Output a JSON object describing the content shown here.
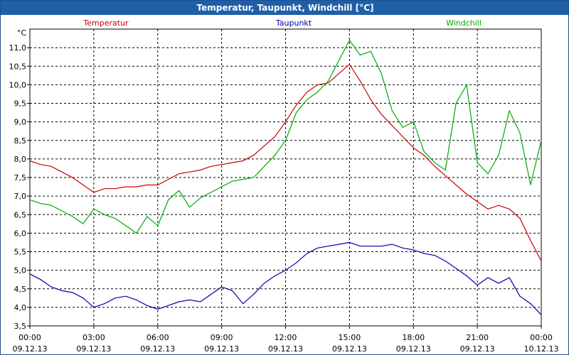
{
  "window": {
    "title": "Temperatur, Taupunkt, Windchill [°C]"
  },
  "chart_data": {
    "type": "line",
    "title": "Temperatur, Taupunkt, Windchill [°C]",
    "unit_label": "°C",
    "ylim": [
      3.5,
      11.5
    ],
    "yticks": [
      "3,5",
      "4,0",
      "4,5",
      "5,0",
      "5,5",
      "6,0",
      "6,5",
      "7,0",
      "7,5",
      "8,0",
      "8,5",
      "9,0",
      "9,5",
      "10,0",
      "10,5",
      "11,0"
    ],
    "xlim": [
      0,
      24
    ],
    "xticks": [
      {
        "time": "00:00",
        "date": "09.12.13"
      },
      {
        "time": "03:00",
        "date": "09.12.13"
      },
      {
        "time": "06:00",
        "date": "09.12.13"
      },
      {
        "time": "09:00",
        "date": "09.12.13"
      },
      {
        "time": "12:00",
        "date": "09.12.13"
      },
      {
        "time": "15:00",
        "date": "09.12.13"
      },
      {
        "time": "18:00",
        "date": "09.12.13"
      },
      {
        "time": "21:00",
        "date": "09.12.13"
      },
      {
        "time": "00:00",
        "date": "10.12.13"
      }
    ],
    "grid": true,
    "legend_position": "top",
    "series": [
      {
        "name": "Temperatur",
        "color": "#cc0000",
        "points": [
          [
            0,
            7.95
          ],
          [
            0.5,
            7.85
          ],
          [
            1,
            7.8
          ],
          [
            1.5,
            7.65
          ],
          [
            2,
            7.5
          ],
          [
            2.5,
            7.3
          ],
          [
            3,
            7.1
          ],
          [
            3.5,
            7.2
          ],
          [
            4,
            7.2
          ],
          [
            4.5,
            7.25
          ],
          [
            5,
            7.25
          ],
          [
            5.5,
            7.3
          ],
          [
            6,
            7.3
          ],
          [
            6.5,
            7.45
          ],
          [
            7,
            7.6
          ],
          [
            7.5,
            7.65
          ],
          [
            8,
            7.7
          ],
          [
            8.5,
            7.8
          ],
          [
            9,
            7.85
          ],
          [
            9.5,
            7.9
          ],
          [
            10,
            7.95
          ],
          [
            10.5,
            8.1
          ],
          [
            11,
            8.35
          ],
          [
            11.5,
            8.6
          ],
          [
            12,
            9.0
          ],
          [
            12.5,
            9.45
          ],
          [
            13,
            9.8
          ],
          [
            13.5,
            10.0
          ],
          [
            14,
            10.05
          ],
          [
            14.5,
            10.3
          ],
          [
            15,
            10.55
          ],
          [
            15.5,
            10.1
          ],
          [
            16,
            9.6
          ],
          [
            16.5,
            9.2
          ],
          [
            17,
            8.9
          ],
          [
            17.5,
            8.6
          ],
          [
            18,
            8.3
          ],
          [
            18.5,
            8.1
          ],
          [
            19,
            7.8
          ],
          [
            19.5,
            7.55
          ],
          [
            20,
            7.3
          ],
          [
            20.5,
            7.05
          ],
          [
            21,
            6.85
          ],
          [
            21.5,
            6.65
          ],
          [
            22,
            6.75
          ],
          [
            22.5,
            6.65
          ],
          [
            23,
            6.4
          ],
          [
            23.5,
            5.8
          ],
          [
            24,
            5.25
          ]
        ]
      },
      {
        "name": "Taupunkt",
        "color": "#0000aa",
        "points": [
          [
            0,
            4.9
          ],
          [
            0.5,
            4.75
          ],
          [
            1,
            4.55
          ],
          [
            1.5,
            4.45
          ],
          [
            2,
            4.4
          ],
          [
            2.5,
            4.25
          ],
          [
            3,
            4.0
          ],
          [
            3.5,
            4.1
          ],
          [
            4,
            4.25
          ],
          [
            4.5,
            4.3
          ],
          [
            5,
            4.2
          ],
          [
            5.5,
            4.05
          ],
          [
            6,
            3.95
          ],
          [
            6.5,
            4.05
          ],
          [
            7,
            4.15
          ],
          [
            7.5,
            4.2
          ],
          [
            8,
            4.15
          ],
          [
            8.5,
            4.35
          ],
          [
            9,
            4.55
          ],
          [
            9.5,
            4.45
          ],
          [
            10,
            4.1
          ],
          [
            10.5,
            4.35
          ],
          [
            11,
            4.65
          ],
          [
            11.5,
            4.85
          ],
          [
            12,
            5.0
          ],
          [
            12.5,
            5.2
          ],
          [
            13,
            5.45
          ],
          [
            13.5,
            5.6
          ],
          [
            14,
            5.65
          ],
          [
            14.5,
            5.7
          ],
          [
            15,
            5.75
          ],
          [
            15.5,
            5.65
          ],
          [
            16,
            5.65
          ],
          [
            16.5,
            5.65
          ],
          [
            17,
            5.7
          ],
          [
            17.5,
            5.6
          ],
          [
            18,
            5.55
          ],
          [
            18.5,
            5.45
          ],
          [
            19,
            5.4
          ],
          [
            19.5,
            5.25
          ],
          [
            20,
            5.05
          ],
          [
            20.5,
            4.85
          ],
          [
            21,
            4.6
          ],
          [
            21.5,
            4.8
          ],
          [
            22,
            4.65
          ],
          [
            22.5,
            4.8
          ],
          [
            23,
            4.3
          ],
          [
            23.5,
            4.1
          ],
          [
            24,
            3.8
          ]
        ]
      },
      {
        "name": "Windchill",
        "color": "#00aa00",
        "points": [
          [
            0,
            6.9
          ],
          [
            0.5,
            6.8
          ],
          [
            1,
            6.75
          ],
          [
            1.5,
            6.6
          ],
          [
            2,
            6.45
          ],
          [
            2.5,
            6.25
          ],
          [
            3,
            6.65
          ],
          [
            3.5,
            6.5
          ],
          [
            4,
            6.4
          ],
          [
            4.5,
            6.2
          ],
          [
            5,
            6.0
          ],
          [
            5.5,
            6.45
          ],
          [
            6,
            6.2
          ],
          [
            6.5,
            6.9
          ],
          [
            7,
            7.15
          ],
          [
            7.5,
            6.7
          ],
          [
            8,
            6.95
          ],
          [
            8.5,
            7.1
          ],
          [
            9,
            7.25
          ],
          [
            9.5,
            7.4
          ],
          [
            10,
            7.45
          ],
          [
            10.5,
            7.5
          ],
          [
            11,
            7.8
          ],
          [
            11.5,
            8.1
          ],
          [
            12,
            8.5
          ],
          [
            12.5,
            9.25
          ],
          [
            13,
            9.6
          ],
          [
            13.5,
            9.8
          ],
          [
            14,
            10.1
          ],
          [
            14.5,
            10.65
          ],
          [
            15,
            11.2
          ],
          [
            15.5,
            10.8
          ],
          [
            16,
            10.9
          ],
          [
            16.5,
            10.3
          ],
          [
            17,
            9.3
          ],
          [
            17.5,
            8.85
          ],
          [
            18,
            9.0
          ],
          [
            18.5,
            8.2
          ],
          [
            19,
            7.9
          ],
          [
            19.5,
            7.7
          ],
          [
            20,
            9.5
          ],
          [
            20.5,
            10.0
          ],
          [
            21,
            7.9
          ],
          [
            21.5,
            7.6
          ],
          [
            22,
            8.1
          ],
          [
            22.5,
            9.3
          ],
          [
            23,
            8.7
          ],
          [
            23.5,
            7.3
          ],
          [
            24,
            8.5
          ]
        ]
      }
    ]
  }
}
